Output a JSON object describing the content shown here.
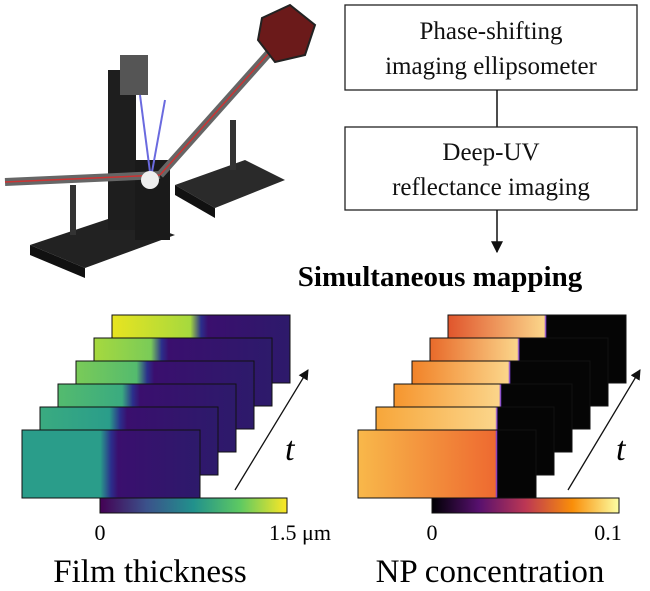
{
  "flowchart": {
    "nodes": [
      {
        "lines": [
          "Phase-shifting",
          "imaging ellipsometer"
        ]
      },
      {
        "lines": [
          "Deep-UV",
          "reflectance imaging"
        ]
      }
    ]
  },
  "heading": "Simultaneous mapping",
  "panels": [
    {
      "time_label": "t",
      "colorbar": {
        "min_label": "0",
        "max_label": "1.5 μm"
      },
      "caption": "Film thickness"
    },
    {
      "time_label": "t",
      "colorbar": {
        "min_label": "0",
        "max_label": "0.1"
      },
      "caption": "NP concentration"
    }
  ]
}
